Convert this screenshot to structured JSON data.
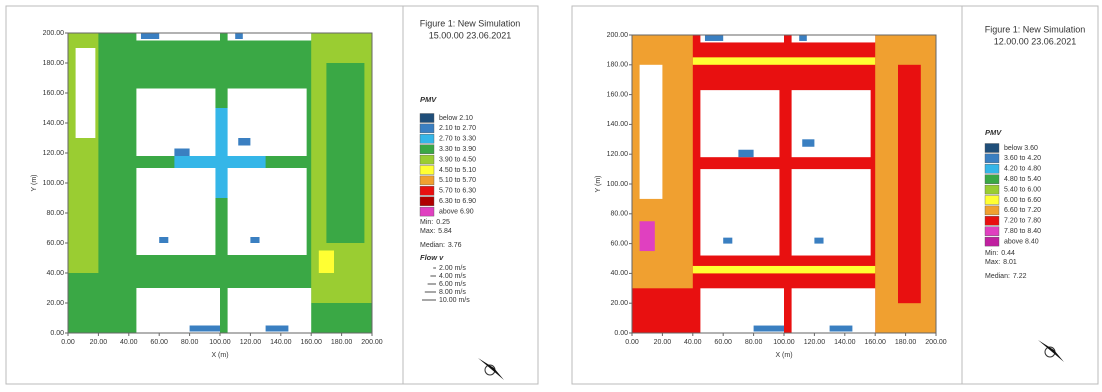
{
  "chart_data": [
    {
      "type": "heatmap",
      "title": "Figure 1: New Simulation",
      "subtitle": "15.00.00 23.06.2021",
      "xlabel": "X (m)",
      "ylabel": "Y (m)",
      "xlim": [
        0,
        200
      ],
      "ylim": [
        0,
        200
      ],
      "xticks": [
        {
          "value": 0,
          "label": "0.00"
        },
        {
          "value": 20,
          "label": "20.00"
        },
        {
          "value": 40,
          "label": "40.00"
        },
        {
          "value": 60,
          "label": "60.00"
        },
        {
          "value": 80,
          "label": "80.00"
        },
        {
          "value": 100,
          "label": "100.00"
        },
        {
          "value": 120,
          "label": "120.00"
        },
        {
          "value": 140,
          "label": "140.00"
        },
        {
          "value": 160,
          "label": "160.00"
        },
        {
          "value": 180,
          "label": "180.00"
        },
        {
          "value": 200,
          "label": "200.00"
        }
      ],
      "yticks": [
        {
          "value": 0,
          "label": "0.00"
        },
        {
          "value": 20,
          "label": "20.00"
        },
        {
          "value": 40,
          "label": "40.00"
        },
        {
          "value": 60,
          "label": "60.00"
        },
        {
          "value": 80,
          "label": "80.00"
        },
        {
          "value": 100,
          "label": "100.00"
        },
        {
          "value": 120,
          "label": "120.00"
        },
        {
          "value": 140,
          "label": "140.00"
        },
        {
          "value": 160,
          "label": "160.00"
        },
        {
          "value": 180,
          "label": "180.00"
        },
        {
          "value": 200,
          "label": "200.00"
        }
      ],
      "legend_title": "PMV",
      "bins": [
        {
          "label": "below 2.10",
          "color": "#1f4e79"
        },
        {
          "label": "2.10 to 2.70",
          "color": "#3a7fc1"
        },
        {
          "label": "2.70 to 3.30",
          "color": "#35b6e8"
        },
        {
          "label": "3.30 to 3.90",
          "color": "#3aa845"
        },
        {
          "label": "3.90 to 4.50",
          "color": "#9acd32"
        },
        {
          "label": "4.50 to 5.10",
          "color": "#ffff33"
        },
        {
          "label": "5.10 to 5.70",
          "color": "#f0a030"
        },
        {
          "label": "5.70 to 6.30",
          "color": "#e81010"
        },
        {
          "label": "6.30 to 6.90",
          "color": "#b00000"
        },
        {
          "label": "above 6.90",
          "color": "#e040c0"
        }
      ],
      "stats": [
        {
          "label": "Min:",
          "value": 0.25
        },
        {
          "label": "Max:",
          "value": 5.84
        },
        {
          "label": "Median:",
          "value": 3.76
        }
      ],
      "flow_title": "Flow v",
      "flow_items": [
        {
          "value": 2,
          "label": "2.00 m/s"
        },
        {
          "value": 4,
          "label": "4.00 m/s"
        },
        {
          "value": 6,
          "label": "6.00 m/s"
        },
        {
          "value": 8,
          "label": "8.00 m/s"
        },
        {
          "value": 10,
          "label": "10.00 m/s"
        }
      ]
    },
    {
      "type": "heatmap",
      "title": "Figure 1: New Simulation",
      "subtitle": "12.00.00 23.06.2021",
      "xlabel": "X (m)",
      "ylabel": "Y (m)",
      "xlim": [
        0,
        200
      ],
      "ylim": [
        0,
        200
      ],
      "xticks": [
        {
          "value": 0,
          "label": "0.00"
        },
        {
          "value": 20,
          "label": "20.00"
        },
        {
          "value": 40,
          "label": "40.00"
        },
        {
          "value": 60,
          "label": "60.00"
        },
        {
          "value": 80,
          "label": "80.00"
        },
        {
          "value": 100,
          "label": "100.00"
        },
        {
          "value": 120,
          "label": "120.00"
        },
        {
          "value": 140,
          "label": "140.00"
        },
        {
          "value": 160,
          "label": "160.00"
        },
        {
          "value": 180,
          "label": "180.00"
        },
        {
          "value": 200,
          "label": "200.00"
        }
      ],
      "yticks": [
        {
          "value": 0,
          "label": "0.00"
        },
        {
          "value": 20,
          "label": "20.00"
        },
        {
          "value": 40,
          "label": "40.00"
        },
        {
          "value": 60,
          "label": "60.00"
        },
        {
          "value": 80,
          "label": "80.00"
        },
        {
          "value": 100,
          "label": "100.00"
        },
        {
          "value": 120,
          "label": "120.00"
        },
        {
          "value": 140,
          "label": "140.00"
        },
        {
          "value": 160,
          "label": "160.00"
        },
        {
          "value": 180,
          "label": "180.00"
        },
        {
          "value": 200,
          "label": "200.00"
        }
      ],
      "legend_title": "PMV",
      "bins": [
        {
          "label": "below 3.60",
          "color": "#1f4e79"
        },
        {
          "label": "3.60 to 4.20",
          "color": "#3a7fc1"
        },
        {
          "label": "4.20 to 4.80",
          "color": "#35b6e8"
        },
        {
          "label": "4.80 to 5.40",
          "color": "#3aa845"
        },
        {
          "label": "5.40 to 6.00",
          "color": "#9acd32"
        },
        {
          "label": "6.00 to 6.60",
          "color": "#ffff33"
        },
        {
          "label": "6.60 to 7.20",
          "color": "#f0a030"
        },
        {
          "label": "7.20 to 7.80",
          "color": "#e81010"
        },
        {
          "label": "7.80 to 8.40",
          "color": "#e040c0"
        },
        {
          "label": "above 8.40",
          "color": "#c020a0"
        }
      ],
      "stats": [
        {
          "label": "Min:",
          "value": 0.44
        },
        {
          "label": "Max:",
          "value": 8.01
        },
        {
          "label": "Median:",
          "value": 7.22
        }
      ]
    }
  ]
}
